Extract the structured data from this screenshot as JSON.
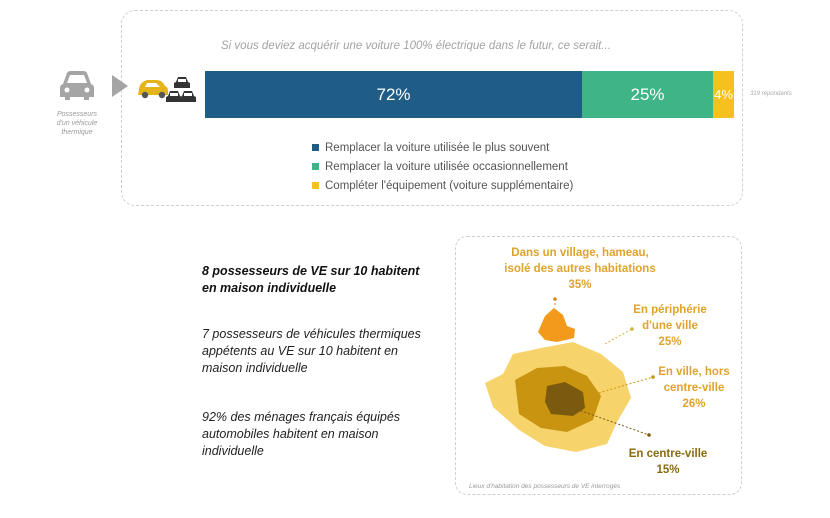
{
  "top": {
    "question": "Si vous deviez acquérir une voiture 100% électrique dans le futur, ce serait...",
    "respondents": "319 répondants",
    "owner_caption": "Possesseurs d'un véhicule thermique"
  },
  "chart_data": {
    "type": "bar",
    "orientation": "horizontal-stacked",
    "categories": [
      "Possesseurs d'un véhicule thermique"
    ],
    "series": [
      {
        "name": "Remplacer la voiture utilisée le plus souvent",
        "value": 72,
        "label": "72%",
        "color": "#1f5c86"
      },
      {
        "name": "Remplacer la voiture utilisée occasionnellement",
        "value": 25,
        "label": "25%",
        "color": "#3fb486"
      },
      {
        "name": "Compléter l'équipement (voiture supplémentaire)",
        "value": 4,
        "label": "4%",
        "color": "#f4c11e"
      }
    ],
    "legend_placement": "bottom"
  },
  "stats": {
    "s1": "8 possesseurs de VE sur 10 habitent en maison individuelle",
    "s2": "7 possesseurs de véhicules thermiques appétents au VE sur 10 habitent en maison individuelle",
    "s3": "92% des ménages français équipés automobiles habitent en maison individuelle"
  },
  "map": {
    "zones": [
      {
        "label_1": "Dans un village, hameau,",
        "label_2": "isolé des autres habitations",
        "pct": "35%",
        "color": "#f39a1c"
      },
      {
        "label_1": "En périphérie",
        "label_2": "d'une ville",
        "pct": "25%",
        "color": "#f7d36c"
      },
      {
        "label_1": "En ville, hors",
        "label_2": "centre-ville",
        "pct": "26%",
        "color": "#c9940f"
      },
      {
        "label_1": "En centre-ville",
        "pct": "15%",
        "color": "#7a5a0e"
      }
    ],
    "caption": "Lieux d'habitation des possesseurs de VE interrogés"
  }
}
